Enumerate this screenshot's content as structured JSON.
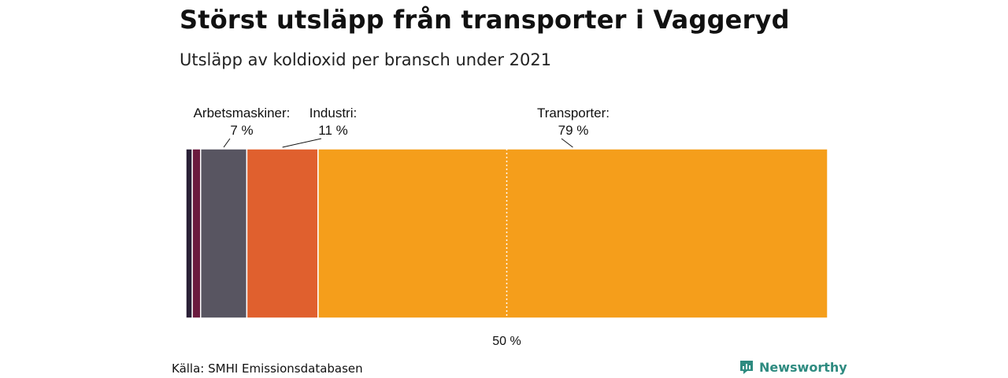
{
  "colors": {
    "transporter": "#f59e1b",
    "industri": "#e0602e",
    "arbetsmaskiner": "#585561",
    "small_1": "#6b1b3e",
    "small_2": "#2a2036",
    "brand": "#2e8b80"
  },
  "chart_data": {
    "type": "bar",
    "orientation": "horizontal-stacked-100",
    "title": "Störst utsläpp från transporter i Vaggeryd",
    "subtitle": "Utsläpp av koldioxid per bransch under 2021",
    "x_range": [
      0,
      100
    ],
    "reference_line": {
      "value": 50,
      "label": "50 %"
    },
    "segments": [
      {
        "value": 1,
        "color_key": "small_2",
        "label": "",
        "value_label": ""
      },
      {
        "value": 1.3,
        "color_key": "small_1",
        "label": "",
        "value_label": ""
      },
      {
        "value": 7.2,
        "color_key": "arbetsmaskiner",
        "label": "Arbetsmaskiner:",
        "value_label": "7 %"
      },
      {
        "value": 11.1,
        "color_key": "industri",
        "label": "Industri:",
        "value_label": "11 %"
      },
      {
        "value": 79.4,
        "color_key": "transporter",
        "label": "Transporter:",
        "value_label": "79 %"
      }
    ]
  },
  "footer": {
    "source": "Källa: SMHI Emissionsdatabasen",
    "brand_name": "Newsworthy",
    "brand_icon": "newsworthy-logo-icon"
  }
}
